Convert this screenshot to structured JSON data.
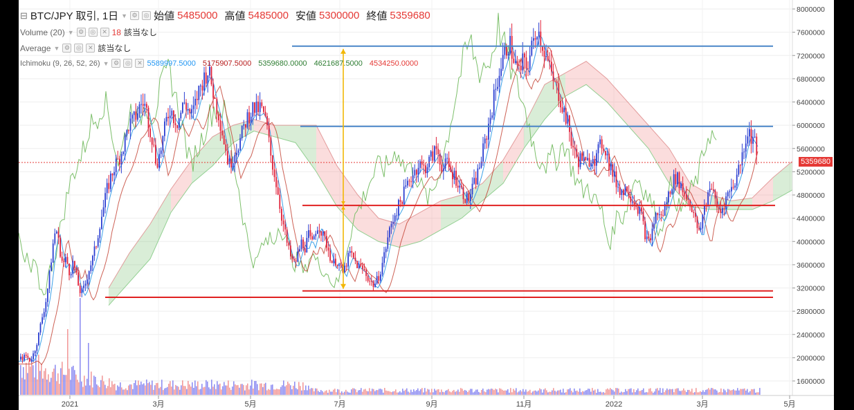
{
  "symbol_line": {
    "symbol": "BTC/JPY 取引, 1日",
    "open_label": "始値",
    "open": "5485000",
    "high_label": "高値",
    "high": "5485000",
    "low_label": "安値",
    "low": "5300000",
    "close_label": "終値",
    "close": "5359680"
  },
  "volume_line": {
    "label": "Volume (20)",
    "value": "18",
    "status": "該当なし"
  },
  "average_line": {
    "label": "Average",
    "status": "該当なし"
  },
  "ichimoku_line": {
    "label": "Ichimoku (9, 26, 52, 26)",
    "v1": "5589997.5000",
    "v2": "5175907.5000",
    "v3": "5359680.0000",
    "v4": "4621687.5000",
    "v5": "4534250.0000"
  },
  "price_tag": "5359680",
  "chart_data": {
    "type": "line",
    "y_ticks": [
      "8000000",
      "7600000",
      "7200000",
      "6800000",
      "6400000",
      "6000000",
      "5600000",
      "5200000",
      "4800000",
      "4400000",
      "4000000",
      "3600000",
      "3200000",
      "2800000",
      "2400000",
      "2000000",
      "1600000"
    ],
    "x_ticks": [
      "2021",
      "3月",
      "5月",
      "7月",
      "9月",
      "11月",
      "2022",
      "3月",
      "5月"
    ],
    "ylim": [
      1300000,
      8200000
    ],
    "horizontal_lines": [
      {
        "value": 7360000,
        "color": "#4a86c8"
      },
      {
        "value": 5980000,
        "color": "#4a86c8"
      },
      {
        "value": 4620000,
        "color": "#e02020"
      },
      {
        "value": 3150000,
        "color": "#e02020"
      },
      {
        "value": 3040000,
        "color": "#e02020"
      }
    ],
    "last_price": 5359680,
    "close_path": [
      [
        0,
        1970000
      ],
      [
        5,
        2000000
      ],
      [
        10,
        2030000
      ],
      [
        15,
        1960000
      ],
      [
        20,
        2050000
      ],
      [
        24,
        2200000
      ],
      [
        28,
        2400000
      ],
      [
        33,
        2700000
      ],
      [
        38,
        2950000
      ],
      [
        43,
        3350000
      ],
      [
        48,
        3900000
      ],
      [
        53,
        4250000
      ],
      [
        58,
        3900000
      ],
      [
        63,
        3600000
      ],
      [
        68,
        3700000
      ],
      [
        73,
        3450000
      ],
      [
        78,
        3650000
      ],
      [
        84,
        3300000
      ],
      [
        89,
        3100000
      ],
      [
        94,
        3200000
      ],
      [
        100,
        3500000
      ],
      [
        106,
        3700000
      ],
      [
        112,
        4000000
      ],
      [
        117,
        4350000
      ],
      [
        122,
        4600000
      ],
      [
        127,
        4900000
      ],
      [
        132,
        5100000
      ],
      [
        138,
        5300000
      ],
      [
        143,
        5400000
      ],
      [
        148,
        5550000
      ],
      [
        153,
        5750000
      ],
      [
        158,
        6000000
      ],
      [
        163,
        6050000
      ],
      [
        168,
        6150000
      ],
      [
        173,
        6300000
      ],
      [
        178,
        6400000
      ],
      [
        183,
        6300000
      ],
      [
        188,
        6000000
      ],
      [
        193,
        5700000
      ],
      [
        198,
        5350000
      ],
      [
        203,
        5500000
      ],
      [
        208,
        5800000
      ],
      [
        213,
        6100000
      ],
      [
        218,
        6300000
      ],
      [
        223,
        6150000
      ],
      [
        228,
        6050000
      ],
      [
        233,
        6200000
      ],
      [
        238,
        6400000
      ],
      [
        243,
        6300000
      ],
      [
        248,
        6150000
      ],
      [
        253,
        6300000
      ],
      [
        258,
        6550000
      ],
      [
        263,
        6700000
      ],
      [
        268,
        6850000
      ],
      [
        273,
        6950000
      ],
      [
        278,
        6700000
      ],
      [
        283,
        6400000
      ],
      [
        288,
        6200000
      ],
      [
        293,
        5900000
      ],
      [
        298,
        5600000
      ],
      [
        303,
        5300000
      ],
      [
        308,
        5450000
      ],
      [
        313,
        5600000
      ],
      [
        318,
        5700000
      ],
      [
        323,
        5900000
      ],
      [
        328,
        6100000
      ],
      [
        333,
        6200000
      ],
      [
        338,
        6300000
      ],
      [
        343,
        6250000
      ],
      [
        348,
        6300000
      ],
      [
        353,
        6200000
      ],
      [
        358,
        5950000
      ],
      [
        363,
        5500000
      ],
      [
        368,
        5200000
      ],
      [
        373,
        4900000
      ],
      [
        378,
        4500000
      ],
      [
        383,
        4200000
      ],
      [
        388,
        3900000
      ],
      [
        393,
        3700000
      ],
      [
        398,
        3600000
      ],
      [
        403,
        3800000
      ],
      [
        408,
        4000000
      ],
      [
        413,
        3900000
      ],
      [
        418,
        4100000
      ],
      [
        423,
        3950000
      ],
      [
        428,
        4200000
      ],
      [
        433,
        4300000
      ],
      [
        438,
        4100000
      ],
      [
        443,
        4000000
      ],
      [
        448,
        3800000
      ],
      [
        453,
        3600000
      ],
      [
        458,
        3700000
      ],
      [
        463,
        3550000
      ],
      [
        468,
        3450000
      ],
      [
        473,
        3650000
      ],
      [
        478,
        3800000
      ],
      [
        483,
        3700000
      ],
      [
        488,
        3600000
      ],
      [
        493,
        3550000
      ],
      [
        498,
        3500000
      ],
      [
        503,
        3400000
      ],
      [
        508,
        3300000
      ],
      [
        513,
        3250000
      ],
      [
        518,
        3350000
      ],
      [
        523,
        3550000
      ],
      [
        528,
        3800000
      ],
      [
        533,
        4100000
      ],
      [
        538,
        4300000
      ],
      [
        543,
        4500000
      ],
      [
        548,
        4600000
      ],
      [
        553,
        4750000
      ],
      [
        558,
        4900000
      ],
      [
        563,
        5050000
      ],
      [
        568,
        5150000
      ],
      [
        573,
        5250000
      ],
      [
        578,
        5350000
      ],
      [
        583,
        5250000
      ],
      [
        588,
        5300000
      ],
      [
        593,
        5400000
      ],
      [
        598,
        5500000
      ],
      [
        603,
        5600000
      ],
      [
        608,
        5400000
      ],
      [
        613,
        5250000
      ],
      [
        618,
        5350000
      ],
      [
        623,
        5200000
      ],
      [
        628,
        5150000
      ],
      [
        633,
        5050000
      ],
      [
        638,
        4900000
      ],
      [
        643,
        4800000
      ],
      [
        648,
        4700000
      ],
      [
        653,
        4850000
      ],
      [
        658,
        5000000
      ],
      [
        663,
        5200000
      ],
      [
        668,
        5450000
      ],
      [
        673,
        5700000
      ],
      [
        678,
        6000000
      ],
      [
        683,
        6300000
      ],
      [
        688,
        6600000
      ],
      [
        693,
        6900000
      ],
      [
        698,
        7100000
      ],
      [
        703,
        7300000
      ],
      [
        708,
        7450000
      ],
      [
        713,
        7200000
      ],
      [
        718,
        7000000
      ],
      [
        723,
        6900000
      ],
      [
        728,
        7100000
      ],
      [
        733,
        7000000
      ],
      [
        738,
        7200000
      ],
      [
        743,
        7450000
      ],
      [
        748,
        7700000
      ],
      [
        753,
        7500000
      ],
      [
        758,
        7300000
      ],
      [
        763,
        7100000
      ],
      [
        768,
        6900000
      ],
      [
        773,
        6700000
      ],
      [
        778,
        6600000
      ],
      [
        783,
        6400000
      ],
      [
        788,
        6200000
      ],
      [
        793,
        6000000
      ],
      [
        798,
        5700000
      ],
      [
        803,
        5500000
      ],
      [
        808,
        5400000
      ],
      [
        813,
        5450000
      ],
      [
        818,
        5300000
      ],
      [
        823,
        5400000
      ],
      [
        828,
        5500000
      ],
      [
        833,
        5400000
      ],
      [
        838,
        5600000
      ],
      [
        843,
        5700000
      ],
      [
        848,
        5550000
      ],
      [
        853,
        5300000
      ],
      [
        858,
        5150000
      ],
      [
        863,
        5000000
      ],
      [
        868,
        4900000
      ],
      [
        873,
        4850000
      ],
      [
        878,
        4950000
      ],
      [
        883,
        4800000
      ],
      [
        888,
        4700000
      ],
      [
        893,
        4600000
      ],
      [
        898,
        4500000
      ],
      [
        903,
        4200000
      ],
      [
        908,
        3950000
      ],
      [
        913,
        4100000
      ],
      [
        918,
        4400000
      ],
      [
        923,
        4500000
      ],
      [
        928,
        4400000
      ],
      [
        933,
        4600000
      ],
      [
        938,
        4800000
      ],
      [
        943,
        5000000
      ],
      [
        948,
        5100000
      ],
      [
        953,
        5050000
      ],
      [
        958,
        4900000
      ],
      [
        963,
        4800000
      ],
      [
        968,
        4700000
      ],
      [
        973,
        4550000
      ],
      [
        978,
        4300000
      ],
      [
        983,
        4100000
      ],
      [
        988,
        4500000
      ],
      [
        993,
        4700000
      ],
      [
        998,
        5000000
      ],
      [
        1003,
        4800000
      ],
      [
        1008,
        4600000
      ],
      [
        1013,
        4500000
      ],
      [
        1018,
        4650000
      ],
      [
        1023,
        4800000
      ],
      [
        1028,
        4900000
      ],
      [
        1033,
        5000000
      ],
      [
        1038,
        5200000
      ],
      [
        1043,
        5400000
      ],
      [
        1048,
        5700000
      ],
      [
        1053,
        5900000
      ],
      [
        1058,
        5800000
      ],
      [
        1063,
        5700000
      ],
      [
        1067,
        5500000
      ],
      [
        1070,
        5360000
      ]
    ],
    "cloud_spans": [
      [
        [
          130,
          2900000,
          3200000
        ],
        [
          160,
          3300000,
          3800000
        ],
        [
          190,
          3700000,
          4300000
        ],
        [
          220,
          4500000,
          4900000
        ],
        [
          250,
          5000000,
          5400000
        ],
        [
          280,
          5300000,
          5800000
        ],
        [
          310,
          5700000,
          6000000
        ],
        [
          340,
          5900000,
          6100000
        ],
        [
          370,
          5800000,
          6000000
        ],
        [
          400,
          5700000,
          6000000
        ],
        [
          430,
          5200000,
          6000000
        ],
        [
          460,
          4600000,
          5300000
        ],
        [
          490,
          4200000,
          4800000
        ],
        [
          520,
          4000000,
          4400000
        ],
        [
          550,
          3900000,
          4300000
        ],
        [
          580,
          4000000,
          4500000
        ],
        [
          610,
          4200000,
          4700000
        ],
        [
          640,
          4400000,
          4800000
        ],
        [
          670,
          4700000,
          5000000
        ],
        [
          700,
          5000000,
          5400000
        ],
        [
          730,
          5600000,
          6000000
        ],
        [
          760,
          6100000,
          6700000
        ],
        [
          790,
          6500000,
          6900000
        ],
        [
          820,
          6700000,
          7100000
        ],
        [
          850,
          6400000,
          6800000
        ],
        [
          880,
          6000000,
          6400000
        ],
        [
          910,
          5600000,
          6000000
        ],
        [
          940,
          5000000,
          5600000
        ],
        [
          970,
          4600000,
          5000000
        ],
        [
          1000,
          4550000,
          4800000
        ],
        [
          1030,
          4550000,
          4700000
        ],
        [
          1060,
          4550000,
          4750000
        ],
        [
          1090,
          4700000,
          5100000
        ],
        [
          1120,
          4900000,
          5400000
        ]
      ]
    ],
    "volume_bars_max_index": 1070
  }
}
